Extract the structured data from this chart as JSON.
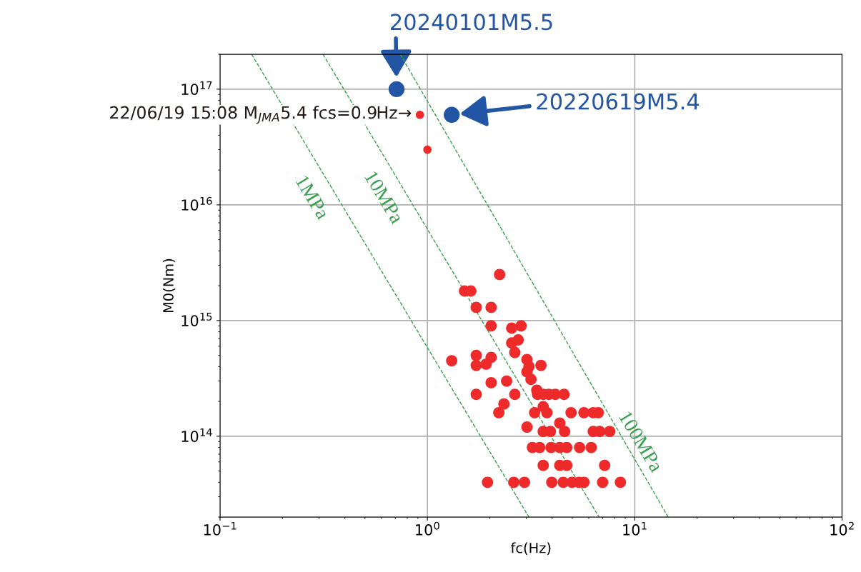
{
  "chart_data": {
    "type": "scatter",
    "xlabel": "fc(Hz)",
    "ylabel": "M0(Nm)",
    "log": "xy",
    "xlim": [
      0.1,
      100
    ],
    "ylim": [
      20000000000000.0,
      2e+17
    ],
    "xticks": [
      {
        "value": 0.1,
        "label": "10$^{−1}$"
      },
      {
        "value": 1,
        "label": "10$^{0}$"
      },
      {
        "value": 10,
        "label": "10$^{1}$"
      },
      {
        "value": 100,
        "label": "10$^{2}$"
      }
    ],
    "yticks": [
      {
        "value": 100000000000000.0,
        "label": "10$^{14}$"
      },
      {
        "value": 1000000000000000.0,
        "label": "10$^{15}$"
      },
      {
        "value": 1e+16,
        "label": "10$^{16}$"
      },
      {
        "value": 1e+17,
        "label": "10$^{17}$"
      }
    ],
    "grid": true,
    "legend": false,
    "marker": "circle",
    "series": [
      {
        "type": "line",
        "color": "#3aa050",
        "line_style": "dashed",
        "marker": "none",
        "x": [
          0.142,
          3.09
        ],
        "values": [
          2e+17,
          20000000000000.0
        ]
      },
      {
        "type": "line",
        "color": "#3aa050",
        "line_style": "dashed",
        "marker": "none",
        "x": [
          0.314,
          6.73
        ],
        "values": [
          2e+17,
          20000000000000.0
        ]
      },
      {
        "type": "line",
        "color": "#3aa050",
        "line_style": "dashed",
        "marker": "none",
        "x": [
          0.74,
          14.5
        ],
        "values": [
          2e+17,
          20000000000000.0
        ]
      },
      {
        "color": "#ee2a2a",
        "x": [
          2.23,
          1.51,
          1.62,
          1.72,
          2.03,
          2.03,
          2.55,
          2.83,
          2.55,
          2.74,
          2.64,
          1.31,
          1.72,
          2.03,
          1.72,
          1.92,
          3.02,
          3.09,
          3.02,
          3.53,
          3.16,
          2.03,
          2.41,
          1.72,
          2.64,
          3.37,
          3.4,
          3.62,
          3.85,
          4.14,
          4.56,
          2.34,
          2.21,
          3.29,
          3.62,
          3.77,
          4.93,
          5.69,
          6.31,
          6.67,
          3.02,
          3.62,
          3.92,
          4.35,
          4.59,
          6.31,
          6.78,
          7.57,
          3.21,
          3.48,
          3.95,
          4.35,
          4.7,
          5.42,
          6.17,
          3.62,
          4.35,
          4.7,
          7.16,
          1.95,
          2.61,
          2.94,
          3.98,
          4.52,
          4.98,
          5.38,
          5.69,
          7.0,
          8.53
        ],
        "values": [
          2500000000000000.0,
          1800000000000000.0,
          1800000000000000.0,
          1300000000000000.0,
          1300000000000000.0,
          900000000000000.0,
          860000000000000.0,
          900000000000000.0,
          640000000000000.0,
          680000000000000.0,
          530000000000000.0,
          450000000000000.0,
          500000000000000.0,
          480000000000000.0,
          410000000000000.0,
          420000000000000.0,
          460000000000000.0,
          400000000000000.0,
          360000000000000.0,
          410000000000000.0,
          310000000000000.0,
          290000000000000.0,
          300000000000000.0,
          230000000000000.0,
          230000000000000.0,
          250000000000000.0,
          230000000000000.0,
          230000000000000.0,
          230000000000000.0,
          230000000000000.0,
          230000000000000.0,
          190000000000000.0,
          160000000000000.0,
          160000000000000.0,
          180000000000000.0,
          160000000000000.0,
          160000000000000.0,
          160000000000000.0,
          160000000000000.0,
          160000000000000.0,
          120000000000000.0,
          110000000000000.0,
          110000000000000.0,
          130000000000000.0,
          110000000000000.0,
          110000000000000.0,
          110000000000000.0,
          110000000000000.0,
          80000000000000.0,
          80000000000000.0,
          80000000000000.0,
          80000000000000.0,
          80000000000000.0,
          80000000000000.0,
          80000000000000.0,
          56000000000000.0,
          56000000000000.0,
          56000000000000.0,
          56000000000000.0,
          40000000000000.0,
          40000000000000.0,
          40000000000000.0,
          40000000000000.0,
          40000000000000.0,
          40000000000000.0,
          40000000000000.0,
          40000000000000.0,
          40000000000000.0,
          40000000000000.0
        ]
      },
      {
        "color": "#ee2a2a",
        "x": [
          0.92,
          1.0
        ],
        "values": [
          6e+16,
          3e+16
        ]
      },
      {
        "color": "#2255a4",
        "x": [
          0.71,
          1.31
        ],
        "values": [
          1e+17,
          6e+16
        ]
      }
    ],
    "annotations": [
      "1MPa",
      "10MPa",
      "100MPa",
      {
        "text": "22/06/19 15:08 M$_{JMA}$5.4 fcs=0.9Hz→",
        "x": 0.92,
        "y": 6e+16
      },
      "20240101M5.5",
      "20220619M5.4"
    ]
  }
}
